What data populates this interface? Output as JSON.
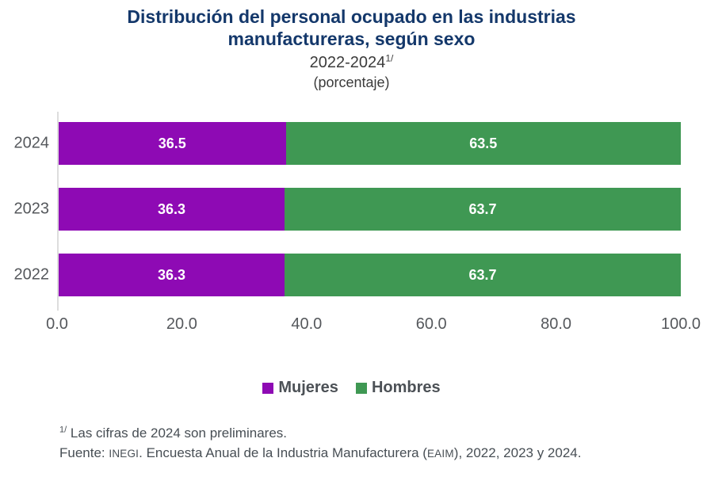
{
  "title": "Distribución del personal ocupado en las industrias manufactureras, según sexo",
  "subtitle": "2022-2024",
  "subtitle_superscript": "1/",
  "unit_label": "(porcentaje)",
  "colors": {
    "mujeres": "#8E0AB4",
    "hombres": "#3F9853",
    "title_text": "#14386B",
    "axis_text": "#55585C",
    "axis_line": "#DDDDDD",
    "value_label": "#FFFFFF"
  },
  "chart_data": {
    "type": "bar",
    "orientation": "horizontal",
    "stacked": true,
    "title": "Distribución del personal ocupado en las industrias manufactureras, según sexo",
    "subtitle": "2022-2024 1/ (porcentaje)",
    "categories": [
      "2024",
      "2023",
      "2022"
    ],
    "series": [
      {
        "name": "Mujeres",
        "color": "#8E0AB4",
        "values": [
          36.5,
          36.3,
          36.3
        ]
      },
      {
        "name": "Hombres",
        "color": "#3F9853",
        "values": [
          63.5,
          63.7,
          63.7
        ]
      }
    ],
    "xlim": [
      0,
      100
    ],
    "x_ticks": [
      {
        "value": 0,
        "label": "0.0"
      },
      {
        "value": 20,
        "label": "20.0"
      },
      {
        "value": 40,
        "label": "40.0"
      },
      {
        "value": 60,
        "label": "60.0"
      },
      {
        "value": 80,
        "label": "80.0"
      },
      {
        "value": 100,
        "label": "100.0"
      }
    ],
    "xlabel": "",
    "ylabel": "",
    "grid": false,
    "legend_position": "bottom",
    "value_labels_shown": true
  },
  "legend": {
    "items": [
      {
        "label": "Mujeres",
        "color": "#8E0AB4"
      },
      {
        "label": "Hombres",
        "color": "#3F9853"
      }
    ]
  },
  "footnotes": {
    "note1_superscript": "1/",
    "note1_text": " Las cifras de 2024 son preliminares.",
    "source_prefix": "Fuente: ",
    "source_acronym1": "INEGI",
    "source_mid": ". Encuesta Anual de la Industria Manufacturera (",
    "source_acronym2": "EAIM",
    "source_suffix": "), 2022, 2023 y 2024."
  }
}
